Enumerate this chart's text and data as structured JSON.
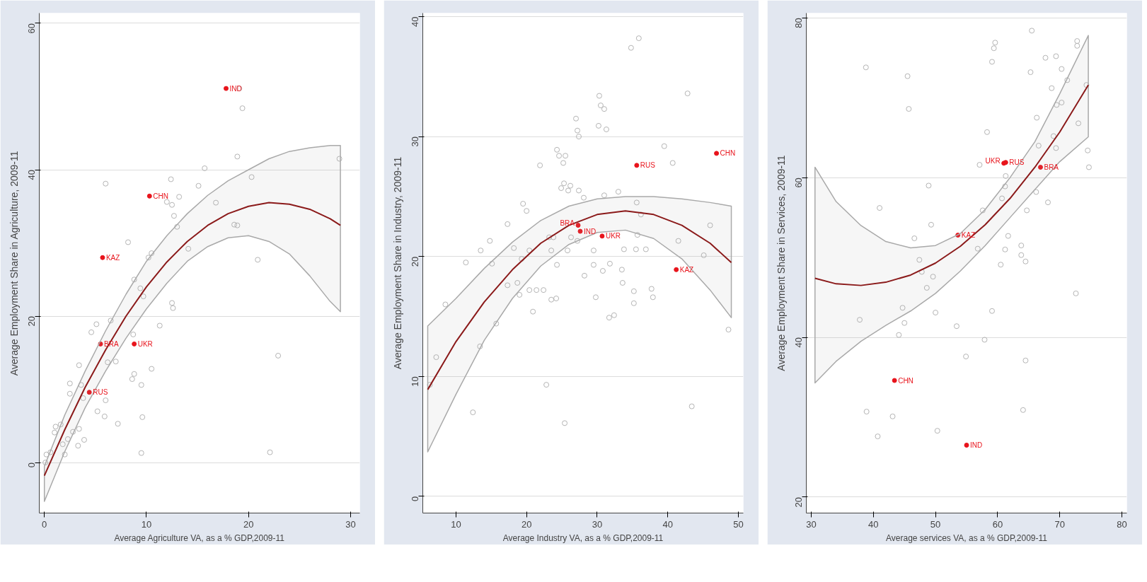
{
  "chart_data": [
    {
      "type": "scatter",
      "xlabel": "Average Agriculture VA, as a % GDP,2009-11",
      "ylabel": "Average Employment Share in Agriculture, 2009-11",
      "xlim": [
        -0.5,
        30.9
      ],
      "ylim": [
        -6.9,
        61.4
      ],
      "xticks": [
        0,
        10,
        20,
        30
      ],
      "yticks": [
        0,
        20,
        40,
        60
      ],
      "grid": "y",
      "series": [
        {
          "marker": "circle",
          "color": "#b4b4b4",
          "x": [
            19.1,
            19.4,
            18.9,
            18.6,
            15.7,
            20.3,
            15.1,
            12.4,
            6.0,
            12.0,
            12.5,
            13.2,
            12.7,
            13.0,
            16.8,
            18.9,
            14.1,
            20.9,
            8.2,
            10.2,
            10.5,
            28.9,
            8.8,
            9.4,
            9.7,
            12.5,
            12.6,
            11.3,
            5.1,
            4.6,
            6.5,
            8.7,
            22.9,
            3.4,
            6.2,
            7.0,
            10.5,
            8.8,
            8.6,
            9.5,
            2.5,
            3.6,
            3.8,
            6.0,
            5.2,
            5.9,
            7.2,
            9.6,
            9.5,
            22.1,
            3.4,
            3.3,
            3.9,
            1.0,
            1.6,
            2.0,
            2.3,
            2.8,
            0.6,
            0.2,
            0.1,
            1.8,
            1.1,
            2.5
          ],
          "values": [
            51.1,
            48.4,
            41.8,
            32.5,
            40.2,
            39.0,
            37.8,
            38.7,
            38.1,
            35.6,
            35.2,
            36.3,
            33.7,
            32.2,
            35.5,
            32.4,
            29.2,
            27.7,
            30.1,
            28.0,
            28.6,
            41.5,
            25.0,
            23.8,
            22.7,
            21.8,
            21.1,
            18.7,
            18.9,
            17.8,
            19.4,
            17.5,
            14.6,
            13.3,
            13.7,
            13.8,
            12.8,
            12.1,
            11.4,
            10.6,
            10.8,
            10.6,
            8.8,
            8.5,
            7.0,
            6.3,
            5.3,
            6.2,
            1.3,
            1.4,
            4.6,
            2.3,
            3.1,
            4.1,
            5.2,
            1.1,
            3.2,
            4.2,
            1.4,
            1.1,
            0.0,
            2.5,
            4.9,
            9.4
          ]
        },
        {
          "marker": "circle",
          "color": "#e8141c",
          "x": [
            17.8,
            10.3,
            5.7,
            5.5,
            8.8,
            4.4
          ],
          "values": [
            51.1,
            36.4,
            28.0,
            16.2,
            16.2,
            9.6
          ]
        },
        {
          "type": "line",
          "color": "#8b1a1a",
          "x": [
            0,
            2,
            4,
            6,
            8,
            10,
            12,
            14,
            16,
            18,
            20,
            22,
            24,
            26,
            28,
            29
          ],
          "values": [
            -1.8,
            4.5,
            10.3,
            15.4,
            20.0,
            24.0,
            27.4,
            30.2,
            32.4,
            34.0,
            35.0,
            35.5,
            35.3,
            34.6,
            33.3,
            32.4
          ],
          "lower": [
            -5.3,
            1.5,
            7.5,
            12.5,
            17.0,
            21.0,
            24.5,
            27.5,
            29.5,
            30.7,
            31.0,
            30.2,
            28.5,
            25.5,
            22.0,
            20.6
          ],
          "upper": [
            -0.5,
            6.5,
            12.5,
            18.0,
            23.0,
            27.5,
            31.0,
            34.0,
            36.5,
            38.5,
            40.0,
            41.5,
            42.5,
            43.0,
            43.3,
            43.3
          ]
        }
      ],
      "annotations": [
        {
          "text": "IND",
          "x": 17.8,
          "y": 51.1
        },
        {
          "text": "CHN",
          "x": 10.3,
          "y": 36.4
        },
        {
          "text": "KAZ",
          "x": 5.7,
          "y": 28.0
        },
        {
          "text": "BRA",
          "x": 5.5,
          "y": 16.2
        },
        {
          "text": "UKR",
          "x": 8.8,
          "y": 16.2
        },
        {
          "text": "RUS",
          "x": 4.4,
          "y": 9.6
        }
      ]
    },
    {
      "type": "scatter",
      "xlabel": "Average Industry VA, as a % GDP,2009-11",
      "ylabel": "Average Employment Share in Industry, 2009-11",
      "xlim": [
        5.3,
        50.7
      ],
      "ylim": [
        -1.4,
        40.3
      ],
      "xticks": [
        10,
        20,
        30,
        40,
        50
      ],
      "yticks": [
        0,
        10,
        20,
        30,
        40
      ],
      "grid": "y",
      "series": [
        {
          "marker": "circle",
          "color": "#b4b4b4",
          "x": [
            34.8,
            35.9,
            42.8,
            30.3,
            30.5,
            31.0,
            30.2,
            31.3,
            27.0,
            27.2,
            27.4,
            39.5,
            40.7,
            24.3,
            21.9,
            24.6,
            25.5,
            25.2,
            24.9,
            25.3,
            26.2,
            25.9,
            27.4,
            28.1,
            31.0,
            33.0,
            35.6,
            36.2,
            19.5,
            20.0,
            17.3,
            14.8,
            13.5,
            11.4,
            15.1,
            18.2,
            20.4,
            23.5,
            25.8,
            23.2,
            23.8,
            26.3,
            27.2,
            29.5,
            33.8,
            35.5,
            36.9,
            35.7,
            41.5,
            46.0,
            45.1,
            19.3,
            24.3,
            29.5,
            31.8,
            30.8,
            33.5,
            28.2,
            37.7,
            17.3,
            18.7,
            21.4,
            22.4,
            33.6,
            8.5,
            7.2,
            6.3,
            15.7,
            13.4,
            12.4,
            22.8,
            25.4,
            43.4,
            48.6,
            19.0,
            20.4,
            20.9,
            23.5,
            24.2,
            29.8,
            31.7,
            32.4,
            35.2,
            35.2,
            37.9
          ],
          "values": [
            37.4,
            38.2,
            33.6,
            33.4,
            32.6,
            32.3,
            30.9,
            30.6,
            31.5,
            30.5,
            30.0,
            29.2,
            27.8,
            28.9,
            27.6,
            28.4,
            28.4,
            27.8,
            25.7,
            26.1,
            25.9,
            25.5,
            25.5,
            24.9,
            25.1,
            25.4,
            24.5,
            23.5,
            24.4,
            23.8,
            22.7,
            21.3,
            20.5,
            19.5,
            19.4,
            20.7,
            20.5,
            20.5,
            20.5,
            21.6,
            21.6,
            21.6,
            21.3,
            20.5,
            20.6,
            20.6,
            20.6,
            21.8,
            21.3,
            22.6,
            20.1,
            19.8,
            19.3,
            19.3,
            19.4,
            18.8,
            18.9,
            18.4,
            17.3,
            17.6,
            17.8,
            17.2,
            17.2,
            17.8,
            16.0,
            11.6,
            9.3,
            14.4,
            12.5,
            7.0,
            9.3,
            6.1,
            7.5,
            13.9,
            16.8,
            17.2,
            15.4,
            16.4,
            16.5,
            16.6,
            14.9,
            15.1,
            16.1,
            17.1,
            16.6
          ]
        },
        {
          "marker": "circle",
          "color": "#e8141c",
          "x": [
            35.6,
            46.9,
            41.2,
            27.3,
            27.6,
            30.7
          ],
          "values": [
            27.6,
            28.6,
            18.9,
            22.6,
            22.1,
            21.7
          ]
        },
        {
          "type": "line",
          "color": "#8b1a1a",
          "x": [
            6,
            10,
            14,
            18,
            22,
            26,
            30,
            34,
            38,
            42,
            46,
            49
          ],
          "values": [
            8.9,
            12.9,
            16.2,
            18.9,
            21.1,
            22.6,
            23.5,
            23.8,
            23.5,
            22.6,
            21.1,
            19.5
          ],
          "lower": [
            3.7,
            8.5,
            13.0,
            16.5,
            19.2,
            21.0,
            22.0,
            22.2,
            21.5,
            19.8,
            17.2,
            14.9
          ],
          "upper": [
            14.2,
            16.5,
            19.0,
            21.2,
            23.0,
            24.2,
            24.8,
            25.0,
            25.0,
            24.8,
            24.5,
            24.2
          ]
        }
      ],
      "annotations": [
        {
          "text": "RUS",
          "x": 35.6,
          "y": 27.6
        },
        {
          "text": "CHN",
          "x": 46.9,
          "y": 28.6
        },
        {
          "text": "KAZ",
          "x": 41.2,
          "y": 18.9
        },
        {
          "text": "BRA",
          "x": 27.3,
          "y": 22.6
        },
        {
          "text": "IND",
          "x": 27.6,
          "y": 22.1
        },
        {
          "text": "UKR",
          "x": 30.7,
          "y": 21.7
        }
      ]
    },
    {
      "type": "scatter",
      "xlabel": "Average services VA, as a % GDP,2009-11",
      "ylabel": "Average Employment Share in Services, 2009-11",
      "xlim": [
        29.2,
        80.8
      ],
      "ylim": [
        18.0,
        80.6
      ],
      "xticks": [
        30,
        40,
        50,
        60,
        70,
        80
      ],
      "yticks": [
        20,
        40,
        60,
        80
      ],
      "grid": "y",
      "series": [
        {
          "marker": "circle",
          "color": "#b4b4b4",
          "x": [
            65.5,
            59.6,
            59.4,
            59.1,
            38.8,
            45.5,
            72.8,
            72.8,
            67.7,
            69.4,
            70.3,
            65.3,
            71.2,
            68.7,
            74.3,
            45.7,
            69.5,
            70.3,
            66.3,
            73.0,
            58.3,
            69.0,
            66.6,
            69.4,
            74.5,
            57.1,
            74.7,
            48.9,
            61.3,
            61.2,
            60.7,
            66.2,
            68.1,
            64.7,
            57.6,
            41.0,
            49.3,
            46.6,
            61.7,
            56.8,
            61.2,
            63.8,
            63.8,
            64.5,
            60.5,
            47.4,
            47.8,
            49.6,
            48.6,
            72.6,
            37.8,
            44.7,
            45.0,
            44.1,
            50.0,
            53.4,
            59.1,
            57.9,
            54.9,
            64.5,
            38.9,
            43.1,
            40.7,
            50.3,
            64.1
          ],
          "values": [
            78.4,
            76.9,
            76.2,
            74.5,
            73.8,
            72.7,
            77.1,
            76.5,
            75.0,
            75.2,
            73.6,
            73.2,
            72.2,
            71.2,
            71.6,
            68.6,
            69.1,
            69.4,
            67.5,
            66.8,
            65.7,
            65.2,
            64.0,
            63.7,
            63.4,
            61.6,
            61.3,
            59.0,
            60.2,
            58.9,
            57.4,
            58.2,
            56.9,
            55.9,
            55.9,
            56.2,
            54.1,
            52.4,
            52.7,
            51.1,
            51.0,
            51.5,
            50.3,
            49.5,
            49.1,
            49.7,
            48.2,
            47.6,
            46.2,
            45.5,
            42.2,
            43.7,
            41.8,
            40.3,
            43.1,
            41.4,
            43.3,
            39.7,
            37.6,
            37.1,
            30.7,
            30.1,
            27.6,
            28.3,
            30.9
          ]
        },
        {
          "marker": "circle",
          "color": "#e8141c",
          "x": [
            61.0,
            61.3,
            66.9,
            53.6,
            43.4,
            55.0
          ],
          "values": [
            61.8,
            61.9,
            61.3,
            52.8,
            34.6,
            26.5
          ]
        },
        {
          "type": "line",
          "color": "#8b1a1a",
          "x": [
            30.6,
            34,
            38,
            42,
            46,
            50,
            54,
            58,
            62,
            66,
            70,
            74.6
          ],
          "values": [
            47.4,
            46.7,
            46.5,
            46.9,
            47.8,
            49.3,
            51.4,
            54.1,
            57.4,
            61.3,
            65.7,
            71.6
          ],
          "lower": [
            34.3,
            37.0,
            39.5,
            41.5,
            43.3,
            45.5,
            48.3,
            51.5,
            55.0,
            58.5,
            62.0,
            65.1
          ],
          "upper": [
            61.3,
            57.0,
            54.0,
            52.0,
            51.2,
            51.5,
            53.0,
            56.0,
            60.0,
            64.5,
            70.5,
            77.8
          ]
        }
      ],
      "annotations": [
        {
          "text": "UKR",
          "x": 61.0,
          "y": 61.8
        },
        {
          "text": "RUS",
          "x": 61.3,
          "y": 61.9
        },
        {
          "text": "BRA",
          "x": 66.9,
          "y": 61.3
        },
        {
          "text": "KAZ",
          "x": 53.6,
          "y": 52.8
        },
        {
          "text": "CHN",
          "x": 43.4,
          "y": 34.6
        },
        {
          "text": "IND",
          "x": 55.0,
          "y": 26.5
        }
      ]
    }
  ]
}
